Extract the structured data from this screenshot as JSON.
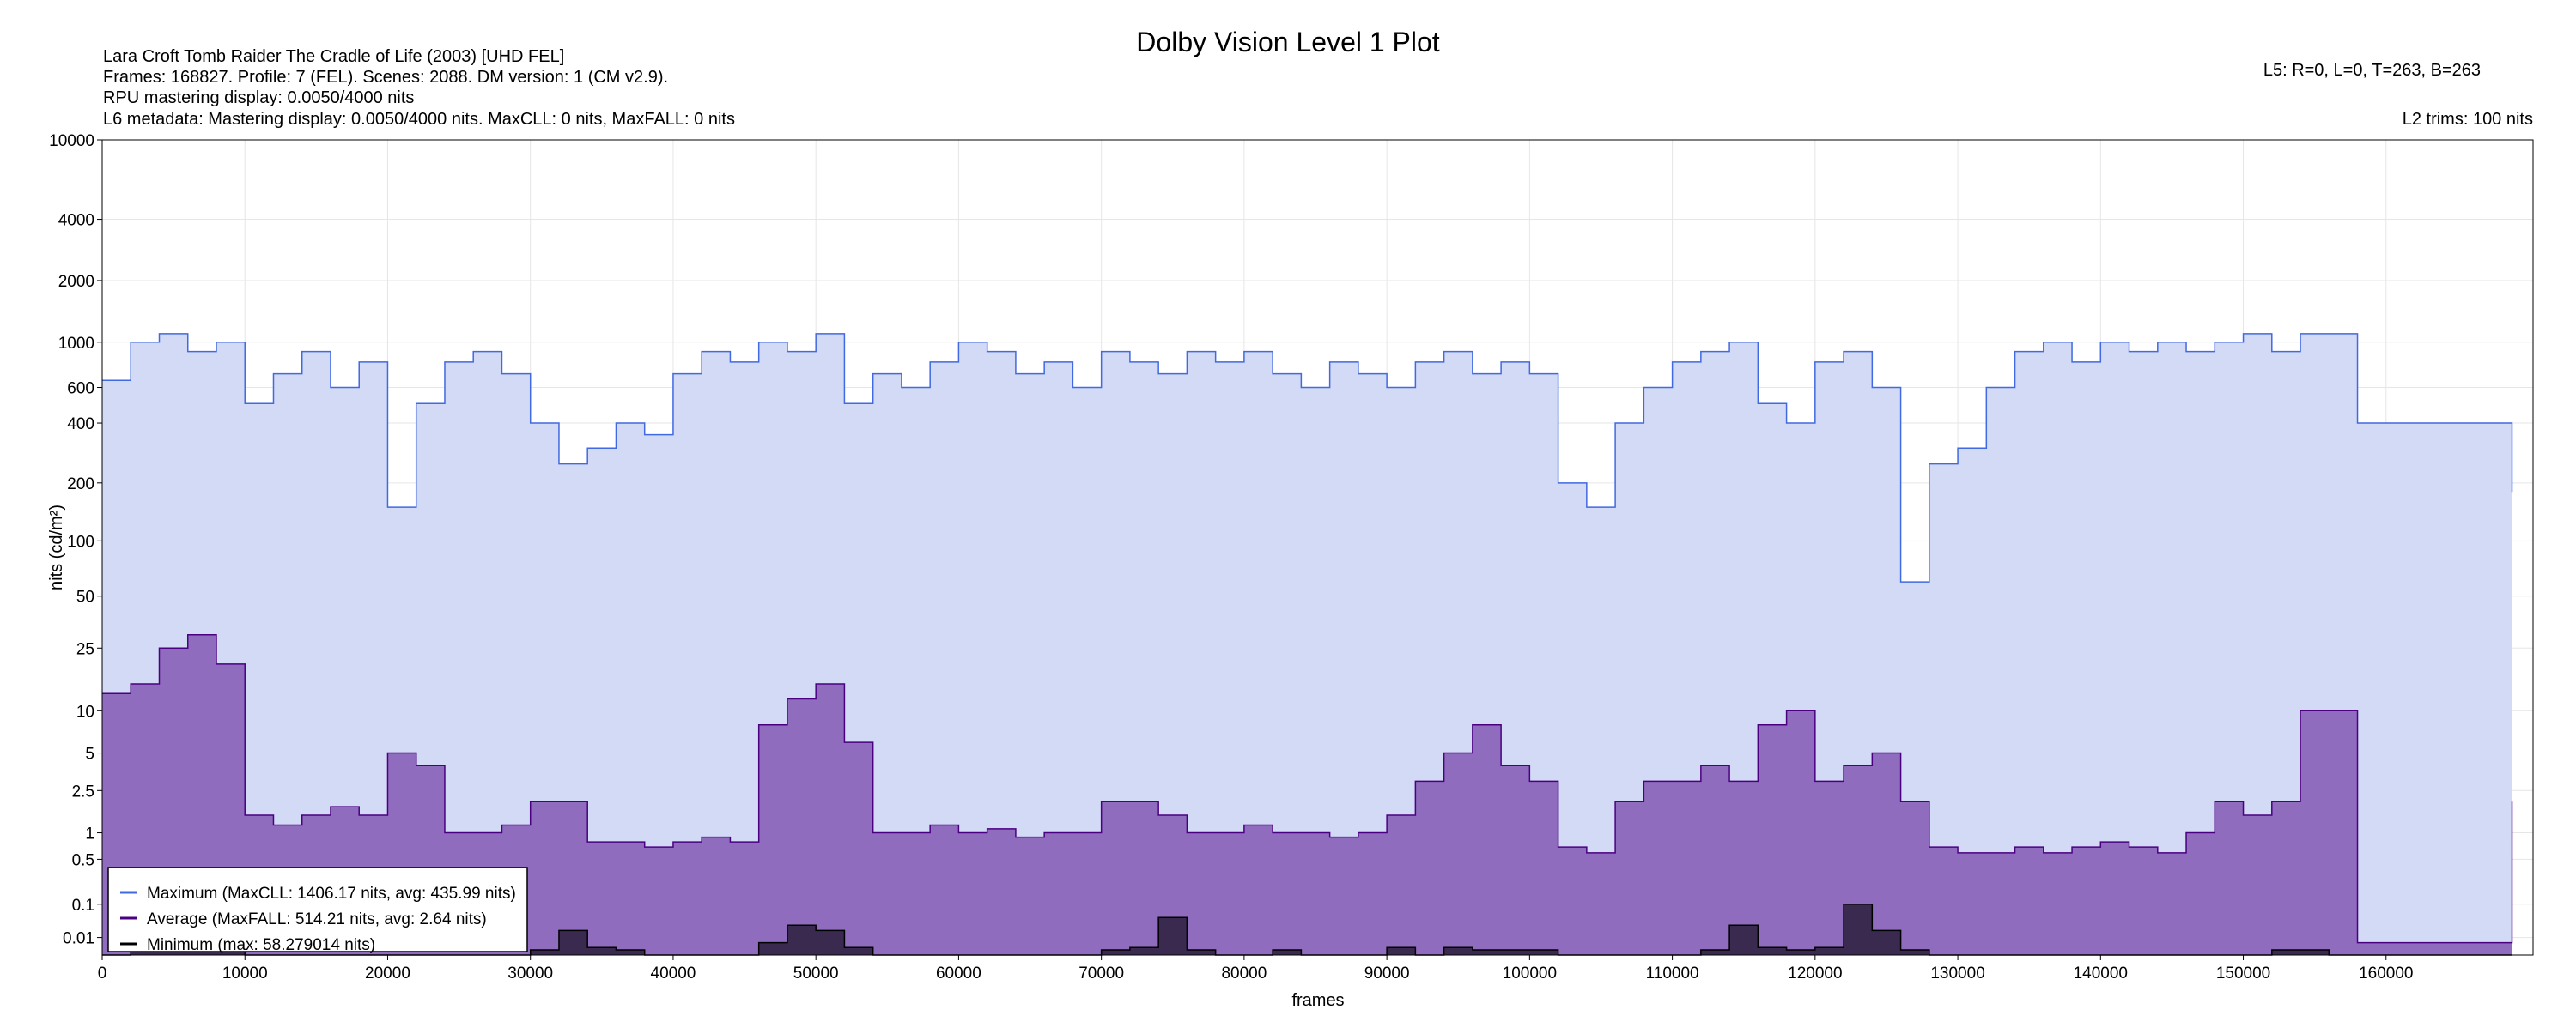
{
  "chart_data": {
    "type": "area",
    "title": "Dolby Vision Level 1 Plot",
    "info_lines": [
      "Lara Croft Tomb Raider The Cradle of Life (2003) [UHD FEL]",
      "Frames: 168827. Profile: 7 (FEL). Scenes: 2088. DM version: 1 (CM v2.9).",
      "RPU mastering display: 0.0050/4000 nits",
      "L6 metadata: Mastering display: 0.0050/4000 nits. MaxCLL: 0 nits, MaxFALL: 0 nits"
    ],
    "l5_text": "L5: R=0, L=0, T=263, B=263",
    "l2_text": "L2 trims: 100 nits",
    "xlabel": "frames",
    "ylabel": "nits (cd/m²)",
    "yscale": "pq",
    "xlim": [
      0,
      170300
    ],
    "ylim": [
      0,
      10000
    ],
    "x_ticks": [
      0,
      10000,
      20000,
      30000,
      40000,
      50000,
      60000,
      70000,
      80000,
      90000,
      100000,
      110000,
      120000,
      130000,
      140000,
      150000,
      160000
    ],
    "y_ticks": [
      0.01,
      0.1,
      0.5,
      1,
      2.5,
      5,
      10,
      25,
      50,
      100,
      200,
      400,
      600,
      1000,
      2000,
      4000,
      10000
    ],
    "y_tick_labels": [
      "0.01",
      "0.1",
      "0.5",
      "1",
      "2.5",
      "5",
      "10",
      "25",
      "50",
      "100",
      "200",
      "400",
      "600",
      "1000",
      "2000",
      "4000",
      "10000"
    ],
    "grid": true,
    "legend_position": "bottom-left",
    "frame_count": 168827,
    "x_step": 2000,
    "series": [
      {
        "name": "Maximum",
        "legend": "Maximum (MaxCLL: 1406.17 nits, avg: 435.99 nits)",
        "line_color": "#4169e1",
        "fill_color": "#d2daf6",
        "values": [
          650,
          1000,
          1100,
          900,
          1000,
          500,
          700,
          900,
          600,
          800,
          150,
          500,
          800,
          900,
          700,
          400,
          250,
          300,
          400,
          350,
          700,
          900,
          800,
          1000,
          900,
          1100,
          500,
          700,
          600,
          800,
          1000,
          900,
          700,
          800,
          600,
          900,
          800,
          700,
          900,
          800,
          900,
          700,
          600,
          800,
          700,
          600,
          800,
          900,
          700,
          800,
          700,
          200,
          150,
          400,
          600,
          800,
          900,
          1000,
          500,
          400,
          800,
          900,
          600,
          60,
          250,
          300,
          600,
          900,
          1000,
          800,
          1000,
          900,
          1000,
          900,
          1000,
          1100,
          900,
          1100,
          1100,
          400,
          400,
          400,
          400,
          400,
          400
        ],
        "end_value": 180
      },
      {
        "name": "Average",
        "legend": "Average (MaxFALL: 514.21 nits, avg: 2.64 nits)",
        "line_color": "#4b0082",
        "fill_color": "#8f6cbd",
        "values": [
          13,
          15,
          25,
          30,
          20,
          1.5,
          1.2,
          1.5,
          1.8,
          1.5,
          5,
          4,
          1,
          1,
          1.2,
          2,
          2,
          0.8,
          0.8,
          0.7,
          0.8,
          0.9,
          0.8,
          8,
          12,
          15,
          6,
          1,
          1,
          1.2,
          1,
          1.1,
          0.9,
          1,
          1,
          2,
          2,
          1.5,
          1,
          1,
          1.2,
          1,
          1,
          0.9,
          1,
          1.5,
          3,
          5,
          8,
          4,
          3,
          0.7,
          0.6,
          2,
          3,
          3,
          4,
          3,
          8,
          10,
          3,
          4,
          5,
          2,
          0.7,
          0.6,
          0.6,
          0.7,
          0.6,
          0.7,
          0.8,
          0.7,
          0.6,
          1,
          2,
          1.5,
          2,
          10,
          10,
          0.005,
          0.005,
          0.005,
          0.005,
          0.005,
          0.005
        ],
        "end_value": 2
      },
      {
        "name": "Minimum",
        "legend": "Minimum (max: 58.279014 nits)",
        "line_color": "#000000",
        "fill_color": "#3a2a50",
        "values": [
          0,
          0.001,
          0.002,
          0.001,
          0.001,
          0,
          0,
          0,
          0,
          0,
          0,
          0,
          0,
          0,
          0,
          0.001,
          0.02,
          0.002,
          0.001,
          0,
          0,
          0,
          0,
          0.005,
          0.03,
          0.02,
          0.002,
          0,
          0,
          0,
          0,
          0,
          0,
          0,
          0,
          0.001,
          0.002,
          0.05,
          0.001,
          0,
          0,
          0.001,
          0,
          0,
          0,
          0.002,
          0,
          0.002,
          0.001,
          0.001,
          0.001,
          0,
          0,
          0,
          0,
          0,
          0.001,
          0.03,
          0.002,
          0.001,
          0.002,
          0.1,
          0.02,
          0.001,
          0,
          0,
          0,
          0,
          0,
          0,
          0,
          0,
          0,
          0,
          0,
          0,
          0.001,
          0.001,
          0,
          0,
          0,
          0,
          0,
          0,
          0
        ],
        "end_value": 0
      }
    ]
  }
}
